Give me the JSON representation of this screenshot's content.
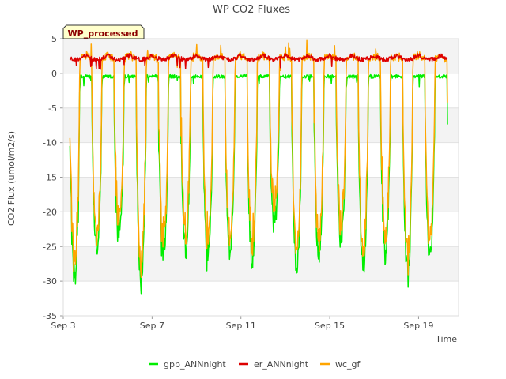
{
  "chart_data": {
    "type": "line",
    "title": "WP CO2 Fluxes",
    "badge": "WP_processed",
    "xlabel": "Time",
    "ylabel": "CO2 Flux (umol/m2/s)",
    "x_unit": "days since Sep 3",
    "xlim": [
      0,
      17.8
    ],
    "ylim": [
      -35,
      5
    ],
    "yticks": [
      5,
      0,
      -5,
      -10,
      -15,
      -20,
      -25,
      -30,
      -35
    ],
    "xticks": [
      {
        "label": "Sep 3",
        "value": 0
      },
      {
        "label": "Sep 7",
        "value": 4
      },
      {
        "label": "Sep 11",
        "value": 8
      },
      {
        "label": "Sep 15",
        "value": 12
      },
      {
        "label": "Sep 19",
        "value": 16
      }
    ],
    "grid": "horizontal bands",
    "legend_position": "bottom",
    "data_start": 0.3,
    "data_end": 17.3,
    "days": [
      {
        "day": 0,
        "min": -32
      },
      {
        "day": 1,
        "min": -27
      },
      {
        "day": 2,
        "min": -25
      },
      {
        "day": 3,
        "min": -32
      },
      {
        "day": 4,
        "min": -28
      },
      {
        "day": 5,
        "min": -27
      },
      {
        "day": 6,
        "min": -29
      },
      {
        "day": 7,
        "min": -27
      },
      {
        "day": 8,
        "min": -30
      },
      {
        "day": 9,
        "min": -24
      },
      {
        "day": 10,
        "min": -30
      },
      {
        "day": 11,
        "min": -28
      },
      {
        "day": 12,
        "min": -26
      },
      {
        "day": 13,
        "min": -30
      },
      {
        "day": 14,
        "min": -28
      },
      {
        "day": 15,
        "min": -31
      },
      {
        "day": 16,
        "min": -28
      },
      {
        "day": 17,
        "min": -27
      }
    ],
    "series": [
      {
        "name": "gpp_ANNnight",
        "color": "#00ee00",
        "night_level": -0.3
      },
      {
        "name": "er_ANNnight",
        "color": "#dd0000",
        "night_level": 2.5
      },
      {
        "name": "wc_gf",
        "color": "#ffa500",
        "night_level": 2.5
      }
    ]
  }
}
